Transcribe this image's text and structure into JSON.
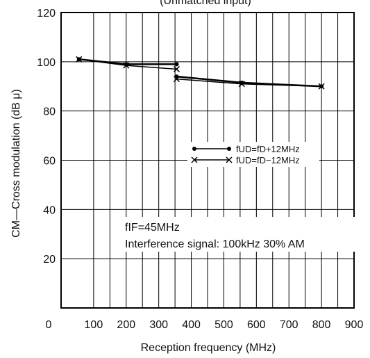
{
  "chart_data": {
    "type": "line",
    "title": "(Unmatched input)",
    "xlabel": "Reception frequency (MHz)",
    "ylabel": "CM—Cross modulation (dB μ)",
    "xlim": [
      0,
      900
    ],
    "ylim": [
      0,
      120
    ],
    "xticks": [
      "0",
      "100",
      "200",
      "300",
      "400",
      "500",
      "600",
      "700",
      "800",
      "900"
    ],
    "yticks": [
      "20",
      "40",
      "60",
      "80",
      "100",
      "120"
    ],
    "grid": true,
    "legend_position": "center-right",
    "series": [
      {
        "name": "fUD=fD+12MHz",
        "marker": "dot",
        "segments": [
          [
            [
              55,
              101
            ],
            [
              200,
              99
            ],
            [
              355,
              99
            ]
          ],
          [
            [
              355,
              94
            ],
            [
              555,
              91.5
            ],
            [
              800,
              90
            ]
          ]
        ]
      },
      {
        "name": "fUD=fD−12MHz",
        "marker": "cross",
        "segments": [
          [
            [
              55,
              101
            ],
            [
              200,
              98.5
            ],
            [
              355,
              97
            ]
          ],
          [
            [
              355,
              93
            ],
            [
              555,
              91
            ],
            [
              800,
              90
            ]
          ]
        ]
      }
    ],
    "annotations": [
      "fIF=45MHz",
      "Interference signal: 100kHz 30% AM"
    ]
  }
}
